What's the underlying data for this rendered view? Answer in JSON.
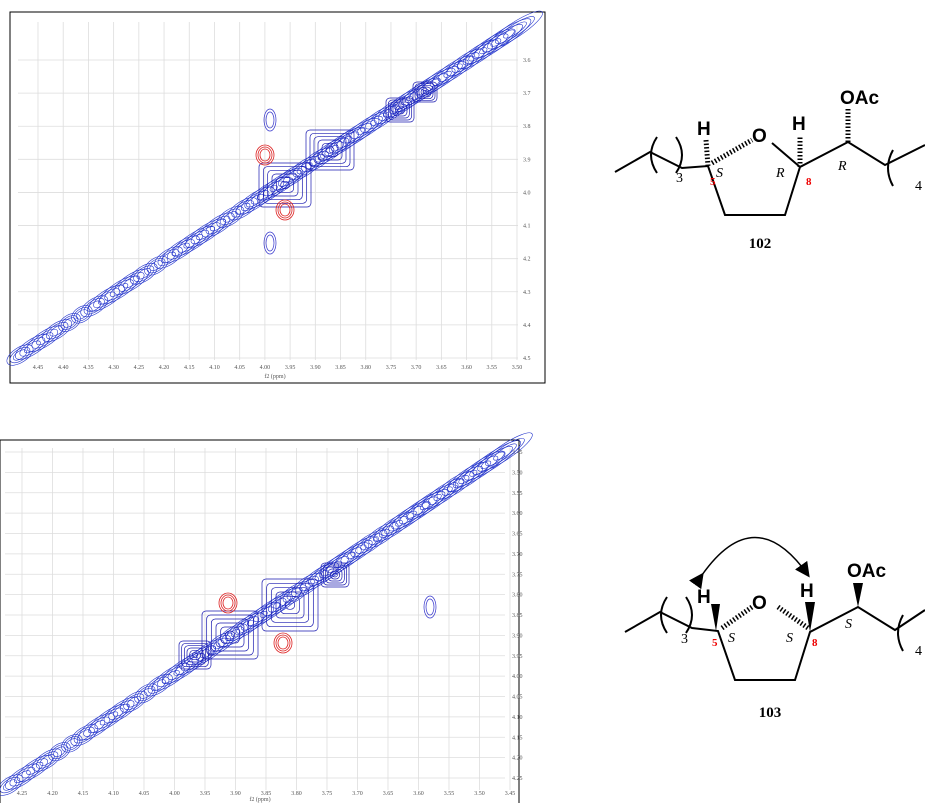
{
  "spectra": [
    {
      "x_ticks": [
        "4.45",
        "4.40",
        "4.35",
        "4.30",
        "4.25",
        "4.20",
        "4.15",
        "4.10",
        "4.05",
        "4.00",
        "3.95",
        "3.90",
        "3.85",
        "3.80",
        "3.75",
        "3.70",
        "3.65",
        "3.60",
        "3.55",
        "3.50"
      ],
      "y_ticks": [
        "3.6",
        "3.7",
        "3.8",
        "3.9",
        "4.0",
        "4.1",
        "4.2",
        "4.3",
        "4.4",
        "4.5"
      ],
      "x_label": "f2 (ppm)"
    },
    {
      "x_ticks": [
        "4.25",
        "4.20",
        "4.15",
        "4.10",
        "4.05",
        "4.00",
        "3.95",
        "3.90",
        "3.85",
        "3.80",
        "3.75",
        "3.70",
        "3.65",
        "3.60",
        "3.55",
        "3.50",
        "3.45"
      ],
      "y_ticks": [
        "3.45",
        "3.50",
        "3.55",
        "3.60",
        "3.65",
        "3.70",
        "3.75",
        "3.80",
        "3.85",
        "3.90",
        "3.95",
        "4.00",
        "4.05",
        "4.10",
        "4.15",
        "4.20",
        "4.25"
      ],
      "x_label": "f2 (ppm)"
    }
  ],
  "structures": [
    {
      "compound": "102",
      "atoms": [
        "H",
        "O",
        "H",
        "OAc"
      ],
      "locants": [
        "5",
        "8"
      ],
      "stereo": [
        "S",
        "R",
        "R"
      ],
      "repeat": [
        "3",
        "4"
      ]
    },
    {
      "compound": "103",
      "atoms": [
        "H",
        "O",
        "H",
        "OAc"
      ],
      "locants": [
        "5",
        "8"
      ],
      "stereo": [
        "S",
        "S",
        "S"
      ],
      "repeat": [
        "3",
        "4"
      ]
    }
  ]
}
